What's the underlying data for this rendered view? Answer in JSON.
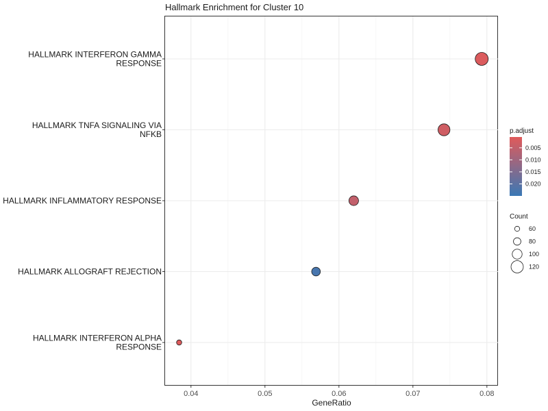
{
  "chart_data": {
    "type": "scatter",
    "title": "Hallmark Enrichment for Cluster 10",
    "xlabel": "GeneRatio",
    "ylabel": "",
    "xlim": [
      0.0365,
      0.0815
    ],
    "x_ticks": [
      0.04,
      0.05,
      0.06,
      0.07,
      0.08
    ],
    "x_tick_labels": [
      "0.04",
      "0.05",
      "0.06",
      "0.07",
      "0.08"
    ],
    "grid": true,
    "legend_position": "right",
    "categories": [
      [
        "HALLMARK INTERFERON GAMMA",
        "RESPONSE"
      ],
      [
        "HALLMARK TNFA SIGNALING VIA",
        "NFKB"
      ],
      [
        "HALLMARK INFLAMMATORY RESPONSE"
      ],
      [
        "HALLMARK ALLOGRAFT REJECTION"
      ],
      [
        "HALLMARK INTERFERON ALPHA",
        "RESPONSE"
      ]
    ],
    "points": [
      {
        "gene_ratio": 0.0793,
        "count": 126,
        "p_adjust": 0.0012
      },
      {
        "gene_ratio": 0.0742,
        "count": 117,
        "p_adjust": 0.003
      },
      {
        "gene_ratio": 0.062,
        "count": 98,
        "p_adjust": 0.005
      },
      {
        "gene_ratio": 0.0569,
        "count": 90,
        "p_adjust": 0.023
      },
      {
        "gene_ratio": 0.0384,
        "count": 61,
        "p_adjust": 0.001
      }
    ],
    "color_legend": {
      "title": "p.adjust",
      "range": [
        0.0005,
        0.025
      ],
      "low_color": "#e05a5a",
      "high_color": "#3a78b5",
      "ticks": [
        0.005,
        0.01,
        0.015,
        0.02
      ],
      "tick_labels": [
        "0.005",
        "0.010",
        "0.015",
        "0.020"
      ]
    },
    "size_legend": {
      "title": "Count",
      "values": [
        60,
        80,
        100,
        120
      ],
      "labels": [
        "60",
        "80",
        "100",
        "120"
      ]
    }
  }
}
